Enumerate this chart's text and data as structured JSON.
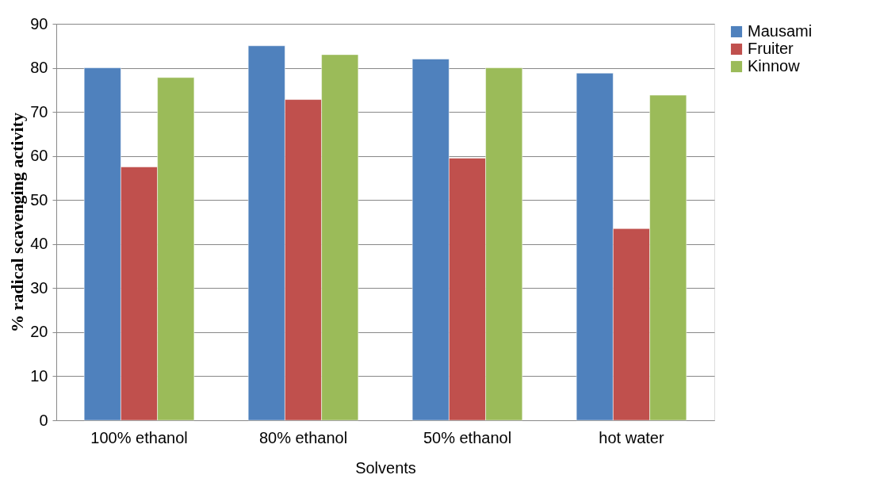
{
  "chart_data": {
    "type": "bar",
    "xlabel": "Solvents",
    "ylabel": "% radical scavenging activity",
    "categories": [
      "100% ethanol",
      "80% ethanol",
      "50% ethanol",
      "hot water"
    ],
    "series": [
      {
        "name": "Mausami",
        "color": "#4f81bd",
        "values": [
          80,
          85,
          82,
          78.8
        ]
      },
      {
        "name": "Fruiter",
        "color": "#c0504d",
        "values": [
          57.5,
          72.8,
          59.5,
          43.5
        ]
      },
      {
        "name": "Kinnow",
        "color": "#9bbb59",
        "values": [
          77.8,
          83,
          80,
          73.8
        ]
      }
    ],
    "ylim": [
      0,
      90
    ],
    "yticks": [
      0,
      10,
      20,
      30,
      40,
      50,
      60,
      70,
      80,
      90
    ],
    "grid": "y",
    "legend": "right"
  }
}
